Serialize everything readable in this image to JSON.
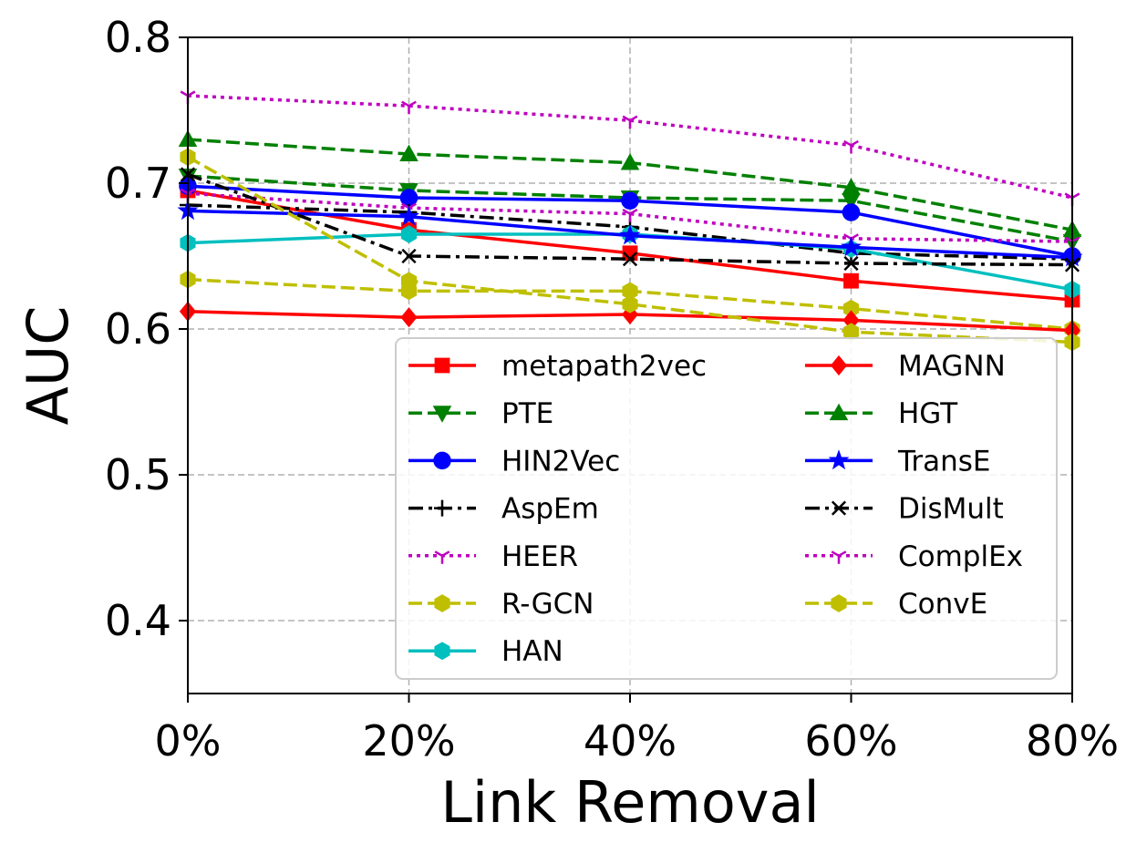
{
  "chart_data": {
    "type": "line",
    "title": "",
    "xlabel": "Link Removal",
    "ylabel": "AUC",
    "categories": [
      "0%",
      "20%",
      "40%",
      "60%",
      "80%"
    ],
    "x": [
      0,
      20,
      40,
      60,
      80
    ],
    "xlim": [
      0,
      80
    ],
    "ylim": [
      0.35,
      0.8
    ],
    "yticks": [
      0.4,
      0.5,
      0.6,
      0.7,
      0.8
    ],
    "ytick_labels": [
      "0.4",
      "0.5",
      "0.6",
      "0.7",
      "0.8"
    ],
    "grid": true,
    "legend_position": "bottom-right",
    "series": [
      {
        "name": "metapath2vec",
        "color": "#ff0000",
        "dash": "solid",
        "marker": "square",
        "values": [
          0.695,
          0.668,
          0.652,
          0.633,
          0.62
        ]
      },
      {
        "name": "PTE",
        "color": "#008000",
        "dash": "dashed",
        "marker": "triangle-down",
        "values": [
          0.705,
          0.695,
          0.69,
          0.688,
          0.66
        ]
      },
      {
        "name": "HIN2Vec",
        "color": "#0000ff",
        "dash": "solid",
        "marker": "circle",
        "values": [
          0.698,
          0.69,
          0.688,
          0.68,
          0.65
        ]
      },
      {
        "name": "AspEm",
        "color": "#000000",
        "dash": "dashdot",
        "marker": "plus",
        "values": [
          0.685,
          0.68,
          0.67,
          0.652,
          0.648
        ]
      },
      {
        "name": "HEER",
        "color": "#bf00bf",
        "dash": "dotted",
        "marker": "tri",
        "values": [
          0.693,
          0.683,
          0.679,
          0.662,
          0.66
        ]
      },
      {
        "name": "R-GCN",
        "color": "#bfbf00",
        "dash": "dashed",
        "marker": "hexagon",
        "values": [
          0.634,
          0.626,
          0.626,
          0.614,
          0.6
        ]
      },
      {
        "name": "HAN",
        "color": "#00bfbf",
        "dash": "solid",
        "marker": "hexagon",
        "values": [
          0.659,
          0.665,
          0.665,
          0.655,
          0.627
        ]
      },
      {
        "name": "MAGNN",
        "color": "#ff0000",
        "dash": "solid",
        "marker": "diamond",
        "values": [
          0.612,
          0.608,
          0.61,
          0.606,
          0.599
        ]
      },
      {
        "name": "HGT",
        "color": "#008000",
        "dash": "dashed",
        "marker": "triangle-up",
        "values": [
          0.73,
          0.72,
          0.714,
          0.697,
          0.668
        ]
      },
      {
        "name": "TransE",
        "color": "#0000ff",
        "dash": "solid",
        "marker": "star",
        "values": [
          0.681,
          0.677,
          0.664,
          0.656,
          0.649
        ]
      },
      {
        "name": "DisMult",
        "color": "#000000",
        "dash": "dashdot",
        "marker": "x",
        "values": [
          0.706,
          0.65,
          0.648,
          0.645,
          0.644
        ]
      },
      {
        "name": "ComplEx",
        "color": "#bf00bf",
        "dash": "dotted",
        "marker": "tri",
        "values": [
          0.76,
          0.753,
          0.743,
          0.726,
          0.69
        ]
      },
      {
        "name": "ConvE",
        "color": "#bfbf00",
        "dash": "dashed",
        "marker": "hexagon",
        "values": [
          0.718,
          0.633,
          0.617,
          0.598,
          0.591
        ]
      }
    ]
  }
}
